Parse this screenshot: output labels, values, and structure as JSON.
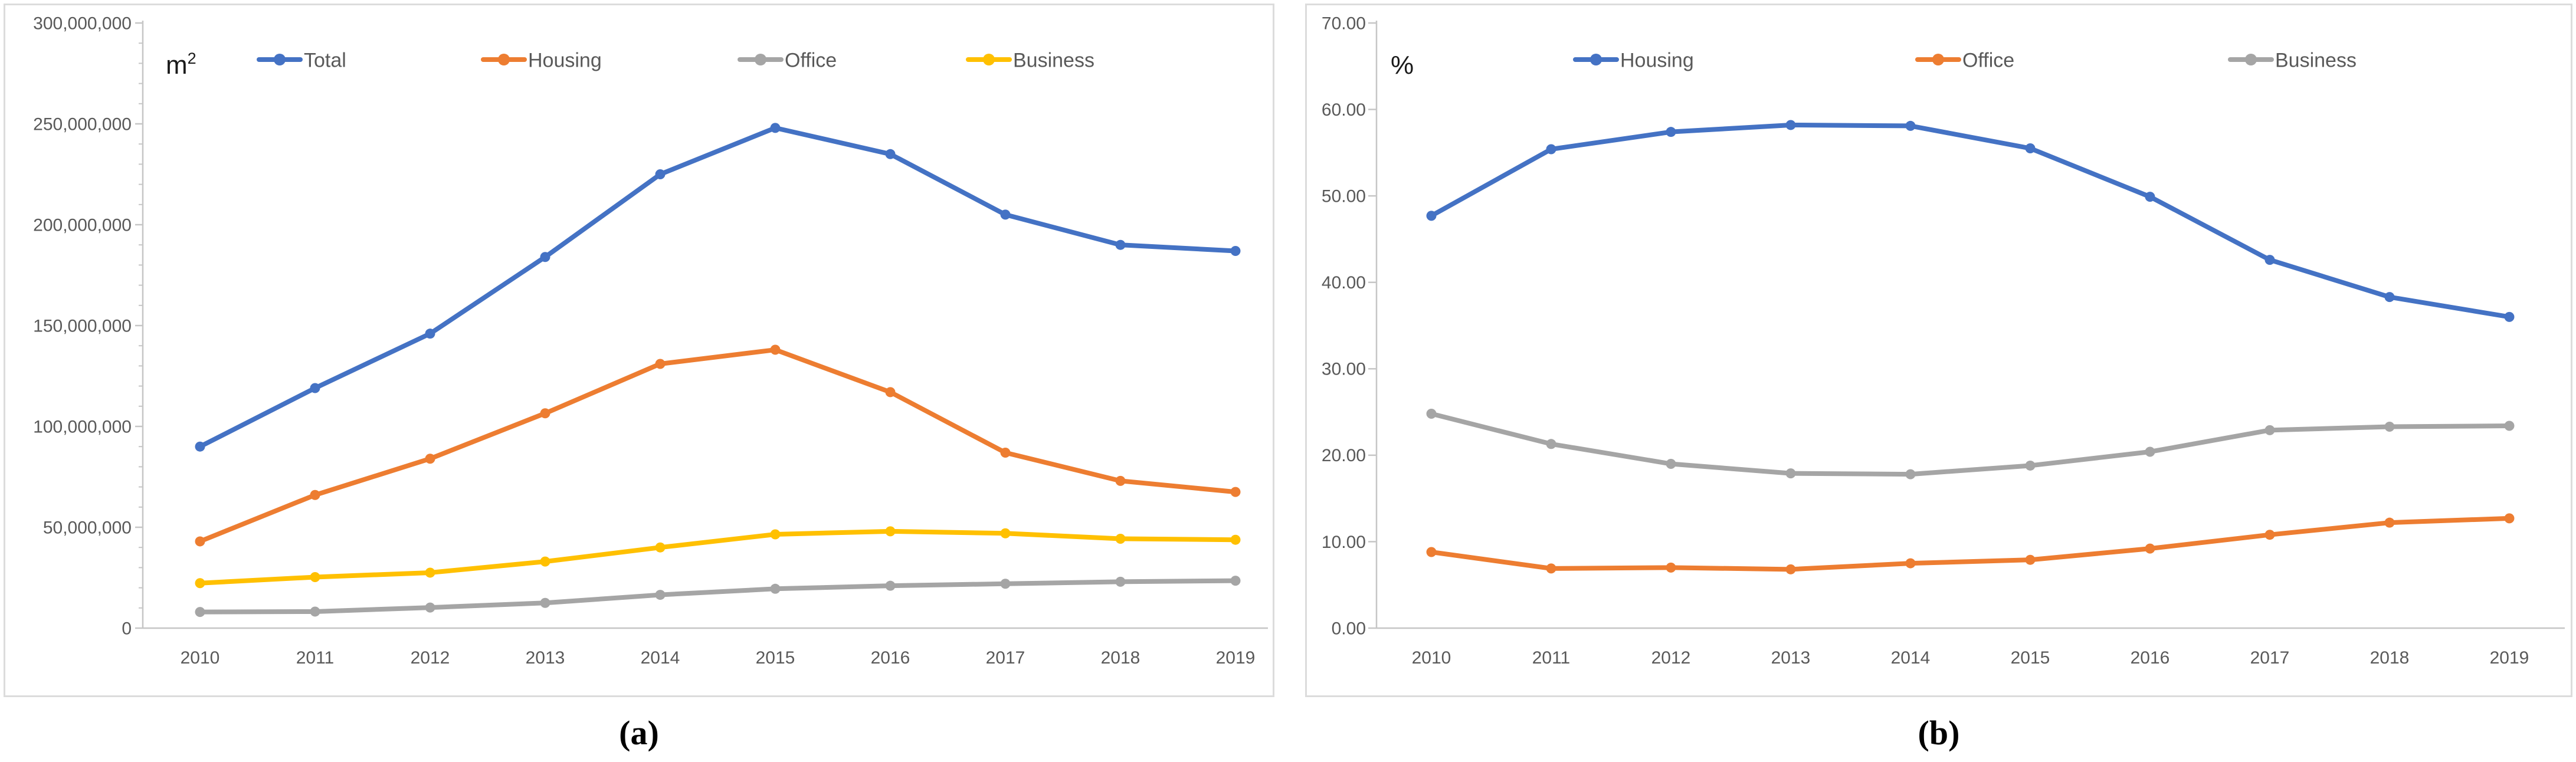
{
  "figure": {
    "caption_a": "(a)",
    "caption_b": "(b)"
  },
  "colors": {
    "blue": "#4472C4",
    "orange": "#ED7D31",
    "gray": "#A5A5A5",
    "yellow": "#FFC000",
    "axis_line": "#c6c6c6",
    "tick_text": "#595959",
    "legend_text": "#595959",
    "unit_text": "#1a1a1a"
  },
  "chart_data": [
    {
      "id": "a",
      "type": "line",
      "unit_label": "m²",
      "categories": [
        "2010",
        "2011",
        "2012",
        "2013",
        "2014",
        "2015",
        "2016",
        "2017",
        "2018",
        "2019"
      ],
      "series": [
        {
          "name": "Total",
          "color_key": "blue",
          "values": [
            90000000,
            119000000,
            146000000,
            184000000,
            225000000,
            248000000,
            235000000,
            205000000,
            190000000,
            187000000
          ]
        },
        {
          "name": "Housing",
          "color_key": "orange",
          "values": [
            43000000,
            66000000,
            84000000,
            106500000,
            131000000,
            138000000,
            117000000,
            87000000,
            73000000,
            67500000
          ]
        },
        {
          "name": "Office",
          "color_key": "gray",
          "values": [
            8000000,
            8200000,
            10200000,
            12500000,
            16500000,
            19500000,
            21000000,
            22000000,
            23000000,
            23500000
          ]
        },
        {
          "name": "Business",
          "color_key": "yellow",
          "values": [
            22300000,
            25300000,
            27500000,
            33000000,
            40000000,
            46500000,
            48000000,
            47000000,
            44300000,
            43800000
          ]
        }
      ],
      "ylim": [
        0,
        300000000
      ],
      "y_ticks": [
        {
          "value": 0,
          "label": "0"
        },
        {
          "value": 50000000,
          "label": "50,000,000"
        },
        {
          "value": 100000000,
          "label": "100,000,000"
        },
        {
          "value": 150000000,
          "label": "150,000,000"
        },
        {
          "value": 200000000,
          "label": "200,000,000"
        },
        {
          "value": 250000000,
          "label": "250,000,000"
        },
        {
          "value": 300000000,
          "label": "300,000,000"
        }
      ],
      "minor_tick_step": 10000000,
      "gridlines": false,
      "legend_position": "top"
    },
    {
      "id": "b",
      "type": "line",
      "unit_label": "%",
      "categories": [
        "2010",
        "2011",
        "2012",
        "2013",
        "2014",
        "2015",
        "2016",
        "2017",
        "2018",
        "2019"
      ],
      "series": [
        {
          "name": "Housing",
          "color_key": "blue",
          "values": [
            47.7,
            55.4,
            57.4,
            58.2,
            58.1,
            55.5,
            49.9,
            42.6,
            38.3,
            36.0
          ]
        },
        {
          "name": "Office",
          "color_key": "orange",
          "values": [
            8.8,
            6.9,
            7.0,
            6.8,
            7.5,
            7.9,
            9.2,
            10.8,
            12.2,
            12.7
          ]
        },
        {
          "name": "Business",
          "color_key": "gray",
          "values": [
            24.8,
            21.3,
            19.0,
            17.9,
            17.8,
            18.8,
            20.4,
            22.9,
            23.3,
            23.4
          ]
        }
      ],
      "ylim": [
        0,
        70
      ],
      "y_ticks": [
        {
          "value": 0,
          "label": "0.00"
        },
        {
          "value": 10,
          "label": "10.00"
        },
        {
          "value": 20,
          "label": "20.00"
        },
        {
          "value": 30,
          "label": "30.00"
        },
        {
          "value": 40,
          "label": "40.00"
        },
        {
          "value": 50,
          "label": "50.00"
        },
        {
          "value": 60,
          "label": "60.00"
        },
        {
          "value": 70,
          "label": "70.00"
        }
      ],
      "minor_tick_step": null,
      "gridlines": false,
      "legend_position": "top"
    }
  ]
}
